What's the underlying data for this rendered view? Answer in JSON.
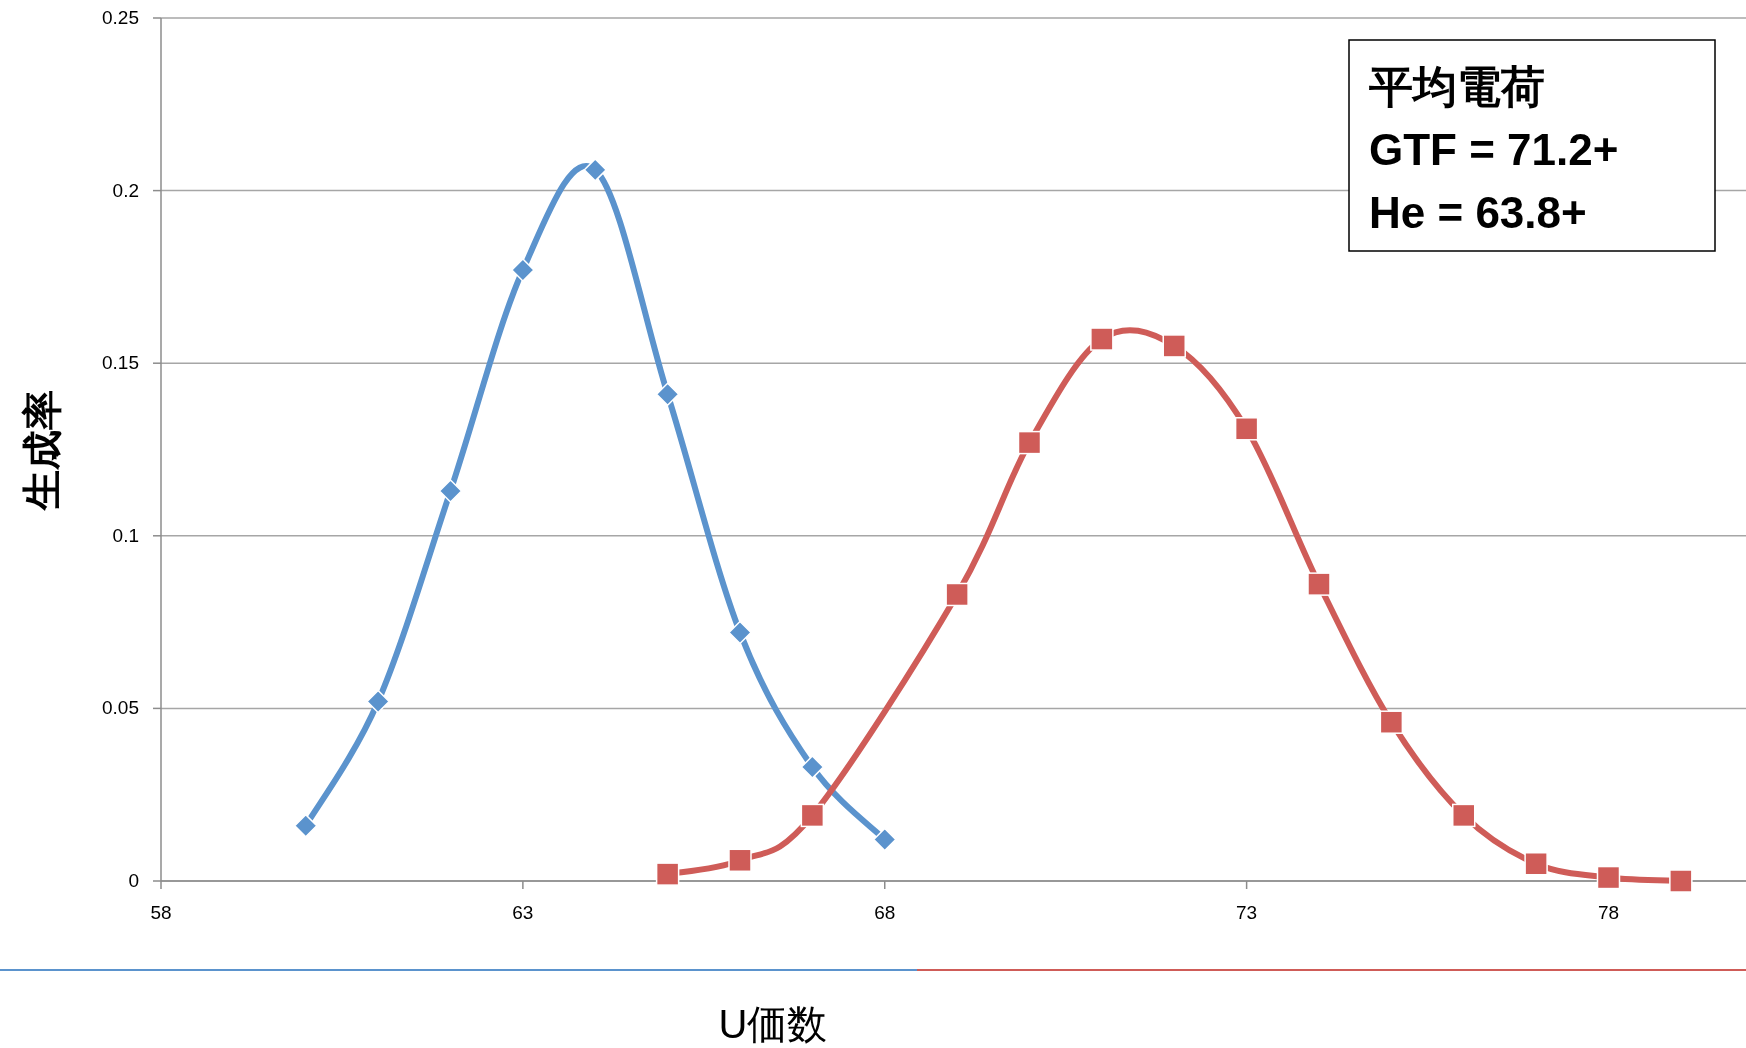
{
  "chart_data": {
    "type": "line",
    "xlabel": "U価数",
    "ylabel": "生成率",
    "xlim": [
      58,
      79.9
    ],
    "xticks": [
      58,
      63,
      68,
      73,
      78
    ],
    "ylim": [
      0,
      0.25
    ],
    "yticks": [
      0,
      0.05,
      0.1,
      0.15,
      0.2,
      0.25
    ],
    "grid": "y",
    "line_style": "solid",
    "annotations": [
      "平均電荷",
      "GTF = 71.2+",
      "He = 63.8+"
    ],
    "series": [
      {
        "color": "#5b93cd",
        "marker": "diamond",
        "x": [
          60,
          61,
          62,
          63,
          64,
          65,
          66,
          67,
          68
        ],
        "values": [
          0.016,
          0.052,
          0.113,
          0.177,
          0.206,
          0.141,
          0.072,
          0.033,
          0.012
        ]
      },
      {
        "color": "#cf5c58",
        "marker": "square",
        "x": [
          65,
          66,
          67,
          69,
          70,
          71,
          72,
          73,
          74,
          75,
          76,
          77,
          78,
          79
        ],
        "values": [
          0.002,
          0.006,
          0.019,
          0.083,
          0.127,
          0.157,
          0.155,
          0.131,
          0.086,
          0.046,
          0.019,
          0.005,
          0.001,
          0.0
        ]
      }
    ]
  }
}
